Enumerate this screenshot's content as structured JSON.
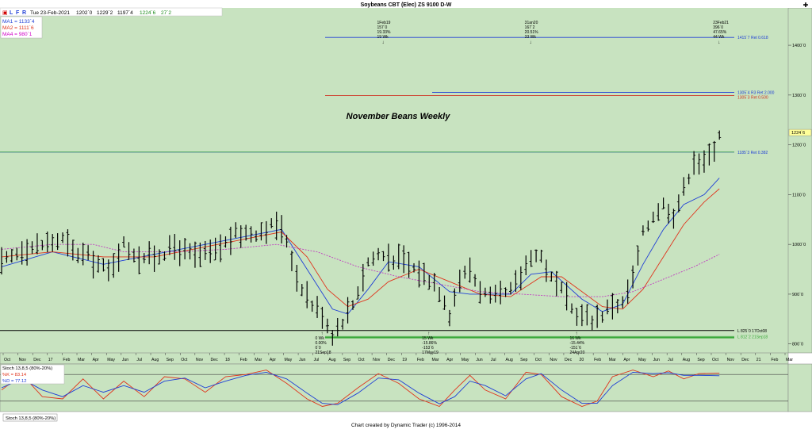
{
  "window": {
    "title": "Soybeans CBT (Elec) ZS 9100 D-W",
    "close_glyph": "✚"
  },
  "toolbar": {
    "buttons": [
      "L",
      "F",
      "R"
    ],
    "date": "Tue 23-Feb-2021",
    "open": "1202`0",
    "high": "1229`2",
    "low": "1197`4",
    "close": "1224`6",
    "change": "27`2"
  },
  "ma_legend": [
    {
      "label": "MA1 = 1133`4",
      "color": "#1f3fd6"
    },
    {
      "label": "MA2 = 1111`6",
      "color": "#e0341c"
    },
    {
      "label": "MA4 = 980`1",
      "color": "#d000c8"
    }
  ],
  "main_title": "November Beans Weekly",
  "footer": "Chart created by Dynamic Trader  (c) 1996-2014",
  "stoch_tab": "Stoch 13,8,5 (80%-20%)",
  "stoch_legend": [
    {
      "label": "Stoch 13,8,5 (80%-20%)",
      "color": "#000000"
    },
    {
      "label": "%K = 83.14",
      "color": "#e0341c"
    },
    {
      "label": "%D = 77.12",
      "color": "#1f3fd6"
    }
  ],
  "colors": {
    "panel_bg": "#c8e3c0",
    "bar": "#000000",
    "ma1": "#1f3fd6",
    "ma2": "#e0341c",
    "ma4": "#c040c0",
    "ret_blue": "#1f3fd6",
    "ret_red": "#d03020",
    "level_green": "#3aa83a",
    "price_box": "#ffff99"
  },
  "chart_data": {
    "type": "line",
    "title": "November Beans Weekly",
    "x_labels": [
      "Oct",
      "Nov",
      "Dec",
      "17",
      "Feb",
      "Mar",
      "Apr",
      "May",
      "Jun",
      "Jul",
      "Aug",
      "Sep",
      "Oct",
      "Nov",
      "Dec",
      "18",
      "Feb",
      "Mar",
      "Apr",
      "May",
      "Jun",
      "Jul",
      "Aug",
      "Sep",
      "Oct",
      "Nov",
      "Dec",
      "19",
      "Feb",
      "Mar",
      "Apr",
      "May",
      "Jun",
      "Jul",
      "Aug",
      "Sep",
      "Oct",
      "Nov",
      "Dec",
      "20",
      "Feb",
      "Mar",
      "Apr",
      "May",
      "Jun",
      "Jul",
      "Aug",
      "Sep",
      "Oct",
      "Nov",
      "Dec",
      "21",
      "Feb",
      "Mar"
    ],
    "y_ticks": [
      "1400`0",
      "1300`0",
      "1200`0",
      "1100`0",
      "1000`0",
      "900`0",
      "800`0"
    ],
    "y_tick_values": [
      1400,
      1300,
      1200,
      1100,
      1000,
      900,
      800
    ],
    "ylim": [
      782,
      1475
    ],
    "current_price_label": "1224`6",
    "price_anchors": [
      [
        0,
        960
      ],
      [
        4,
        990
      ],
      [
        8,
        1000
      ],
      [
        12,
        1010
      ],
      [
        14,
        985
      ],
      [
        17,
        975
      ],
      [
        19,
        960
      ],
      [
        21,
        945
      ],
      [
        24,
        1000
      ],
      [
        27,
        975
      ],
      [
        30,
        975
      ],
      [
        34,
        995
      ],
      [
        38,
        975
      ],
      [
        42,
        985
      ],
      [
        46,
        1020
      ],
      [
        50,
        1025
      ],
      [
        54,
        1040
      ],
      [
        56,
        1010
      ],
      [
        58,
        935
      ],
      [
        61,
        880
      ],
      [
        63,
        860
      ],
      [
        65,
        820
      ],
      [
        67,
        848
      ],
      [
        69,
        880
      ],
      [
        72,
        965
      ],
      [
        74,
        980
      ],
      [
        76,
        975
      ],
      [
        79,
        965
      ],
      [
        82,
        945
      ],
      [
        85,
        925
      ],
      [
        87,
        890
      ],
      [
        88,
        860
      ],
      [
        90,
        930
      ],
      [
        92,
        950
      ],
      [
        94,
        910
      ],
      [
        96,
        890
      ],
      [
        98,
        895
      ],
      [
        100,
        905
      ],
      [
        102,
        935
      ],
      [
        104,
        980
      ],
      [
        106,
        975
      ],
      [
        108,
        930
      ],
      [
        110,
        905
      ],
      [
        112,
        870
      ],
      [
        114,
        855
      ],
      [
        116,
        850
      ],
      [
        118,
        860
      ],
      [
        120,
        880
      ],
      [
        122,
        880
      ],
      [
        124,
        930
      ],
      [
        126,
        1020
      ],
      [
        128,
        1060
      ],
      [
        130,
        1080
      ],
      [
        132,
        1060
      ],
      [
        134,
        1110
      ],
      [
        136,
        1170
      ],
      [
        138,
        1160
      ],
      [
        140,
        1195
      ],
      [
        141,
        1224.75
      ]
    ],
    "series": [
      {
        "name": "MA1",
        "values": [
          [
            0,
            955
          ],
          [
            10,
            985
          ],
          [
            20,
            960
          ],
          [
            30,
            980
          ],
          [
            40,
            1000
          ],
          [
            50,
            1020
          ],
          [
            55,
            1030
          ],
          [
            60,
            950
          ],
          [
            65,
            870
          ],
          [
            68,
            860
          ],
          [
            72,
            910
          ],
          [
            76,
            965
          ],
          [
            82,
            955
          ],
          [
            88,
            905
          ],
          [
            92,
            900
          ],
          [
            100,
            900
          ],
          [
            104,
            940
          ],
          [
            108,
            945
          ],
          [
            114,
            890
          ],
          [
            118,
            865
          ],
          [
            122,
            880
          ],
          [
            126,
            960
          ],
          [
            130,
            1030
          ],
          [
            134,
            1080
          ],
          [
            138,
            1100
          ],
          [
            141,
            1133.5
          ]
        ]
      },
      {
        "name": "MA2",
        "values": [
          [
            0,
            975
          ],
          [
            10,
            985
          ],
          [
            20,
            975
          ],
          [
            30,
            975
          ],
          [
            40,
            995
          ],
          [
            50,
            1015
          ],
          [
            55,
            1025
          ],
          [
            60,
            975
          ],
          [
            64,
            910
          ],
          [
            68,
            875
          ],
          [
            72,
            890
          ],
          [
            76,
            925
          ],
          [
            82,
            950
          ],
          [
            88,
            925
          ],
          [
            94,
            900
          ],
          [
            100,
            895
          ],
          [
            106,
            935
          ],
          [
            110,
            935
          ],
          [
            114,
            905
          ],
          [
            118,
            875
          ],
          [
            122,
            870
          ],
          [
            126,
            910
          ],
          [
            130,
            975
          ],
          [
            134,
            1040
          ],
          [
            138,
            1085
          ],
          [
            141,
            1111.75
          ]
        ]
      },
      {
        "name": "MA4",
        "values": [
          [
            0,
            990
          ],
          [
            10,
            1000
          ],
          [
            18,
            1000
          ],
          [
            24,
            985
          ],
          [
            34,
            985
          ],
          [
            44,
            990
          ],
          [
            54,
            1000
          ],
          [
            62,
            985
          ],
          [
            70,
            955
          ],
          [
            78,
            935
          ],
          [
            86,
            920
          ],
          [
            94,
            905
          ],
          [
            102,
            900
          ],
          [
            110,
            895
          ],
          [
            118,
            895
          ],
          [
            124,
            905
          ],
          [
            130,
            930
          ],
          [
            136,
            955
          ],
          [
            141,
            980.1
          ]
        ]
      }
    ],
    "annotations": [
      {
        "label": "1415`7 Ret 0.618",
        "y": 1415.75,
        "color": "#1f3fd6"
      },
      {
        "label": "1305`4 R3 Ret 2.000",
        "y": 1305.5,
        "color": "#1f3fd6"
      },
      {
        "label": "1305`3 Ret 0.500",
        "y": 1299,
        "color": "#d03020"
      },
      {
        "label": "1185`3 Ret 0.382",
        "y": 1185.4,
        "color": "#1f3fd6"
      },
      {
        "label": "L 825`0 17Oct08",
        "y": 827,
        "color": "#000000"
      },
      {
        "label": "L 812`2 21Sep18",
        "y": 815,
        "color": "#3aa83a"
      }
    ],
    "time_labels_top": [
      {
        "x": 75,
        "lines": [
          "1Feb19",
          "157`0",
          "19.33%",
          "19 Wk"
        ]
      },
      {
        "x": 104,
        "lines": [
          "31an20",
          "167`2",
          "20.51%",
          "33 Wk"
        ]
      },
      {
        "x": 141,
        "lines": [
          "23Feb21",
          "396`0",
          "47.65%",
          "44 Wk"
        ]
      }
    ],
    "time_labels_bottom": [
      {
        "x": 63,
        "lines": [
          "0 Wk",
          "0.00%",
          "0`0",
          "21Sep18"
        ]
      },
      {
        "x": 84,
        "lines": [
          "15 Wk",
          "-15.86%",
          "-153`6",
          "17May19"
        ]
      },
      {
        "x": 113,
        "lines": [
          "16 Wk",
          "-15.44%",
          "-151`6",
          "24Apr20"
        ]
      }
    ],
    "stochastic": {
      "k": [
        [
          0,
          45
        ],
        [
          4,
          80
        ],
        [
          8,
          30
        ],
        [
          12,
          25
        ],
        [
          16,
          70
        ],
        [
          20,
          25
        ],
        [
          24,
          65
        ],
        [
          28,
          30
        ],
        [
          32,
          75
        ],
        [
          36,
          70
        ],
        [
          40,
          40
        ],
        [
          44,
          75
        ],
        [
          48,
          80
        ],
        [
          52,
          90
        ],
        [
          56,
          60
        ],
        [
          60,
          25
        ],
        [
          63,
          8
        ],
        [
          66,
          15
        ],
        [
          70,
          50
        ],
        [
          74,
          82
        ],
        [
          78,
          60
        ],
        [
          82,
          25
        ],
        [
          86,
          8
        ],
        [
          89,
          45
        ],
        [
          92,
          78
        ],
        [
          95,
          45
        ],
        [
          99,
          25
        ],
        [
          103,
          85
        ],
        [
          106,
          80
        ],
        [
          110,
          30
        ],
        [
          114,
          8
        ],
        [
          117,
          20
        ],
        [
          120,
          75
        ],
        [
          124,
          90
        ],
        [
          128,
          75
        ],
        [
          131,
          88
        ],
        [
          134,
          70
        ],
        [
          137,
          82
        ],
        [
          141,
          83.14
        ]
      ],
      "d": [
        [
          0,
          50
        ],
        [
          4,
          70
        ],
        [
          8,
          45
        ],
        [
          12,
          30
        ],
        [
          16,
          55
        ],
        [
          20,
          40
        ],
        [
          24,
          55
        ],
        [
          28,
          40
        ],
        [
          32,
          65
        ],
        [
          36,
          72
        ],
        [
          40,
          50
        ],
        [
          44,
          65
        ],
        [
          48,
          78
        ],
        [
          52,
          85
        ],
        [
          56,
          70
        ],
        [
          60,
          38
        ],
        [
          63,
          15
        ],
        [
          66,
          12
        ],
        [
          70,
          38
        ],
        [
          74,
          72
        ],
        [
          78,
          68
        ],
        [
          82,
          38
        ],
        [
          86,
          14
        ],
        [
          89,
          30
        ],
        [
          92,
          65
        ],
        [
          95,
          55
        ],
        [
          99,
          32
        ],
        [
          103,
          70
        ],
        [
          106,
          82
        ],
        [
          110,
          45
        ],
        [
          114,
          15
        ],
        [
          117,
          15
        ],
        [
          120,
          55
        ],
        [
          124,
          85
        ],
        [
          128,
          82
        ],
        [
          131,
          84
        ],
        [
          134,
          78
        ],
        [
          137,
          78
        ],
        [
          141,
          77.12
        ]
      ],
      "levels": [
        80,
        20
      ]
    }
  }
}
